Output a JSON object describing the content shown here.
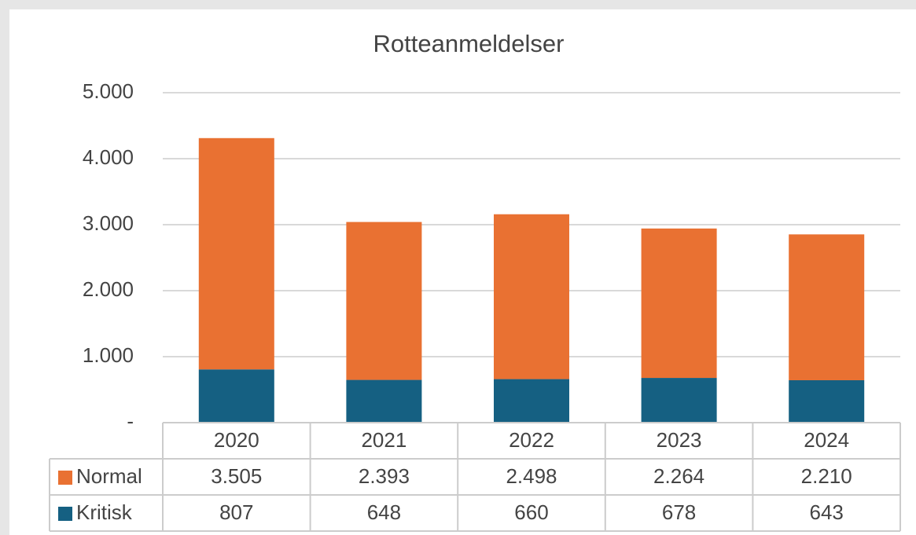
{
  "chart_data": {
    "type": "bar",
    "stacked": true,
    "title": "Rotteanmeldelser",
    "categories": [
      "2020",
      "2021",
      "2022",
      "2023",
      "2024"
    ],
    "series": [
      {
        "name": "Normal",
        "color": "#e97132",
        "values": [
          3505,
          2393,
          2498,
          2264,
          2210
        ],
        "value_labels": [
          "3.505",
          "2.393",
          "2.498",
          "2.264",
          "2.210"
        ]
      },
      {
        "name": "Kritisk",
        "color": "#156082",
        "values": [
          807,
          648,
          660,
          678,
          643
        ]
      }
    ],
    "ylim": [
      0,
      5000
    ],
    "yticks": [
      {
        "value": 0,
        "label": "-"
      },
      {
        "value": 1000,
        "label": "1.000"
      },
      {
        "value": 2000,
        "label": "2.000"
      },
      {
        "value": 3000,
        "label": "3.000"
      },
      {
        "value": 4000,
        "label": "4.000"
      },
      {
        "value": 5000,
        "label": "5.000"
      }
    ],
    "grid": true
  }
}
